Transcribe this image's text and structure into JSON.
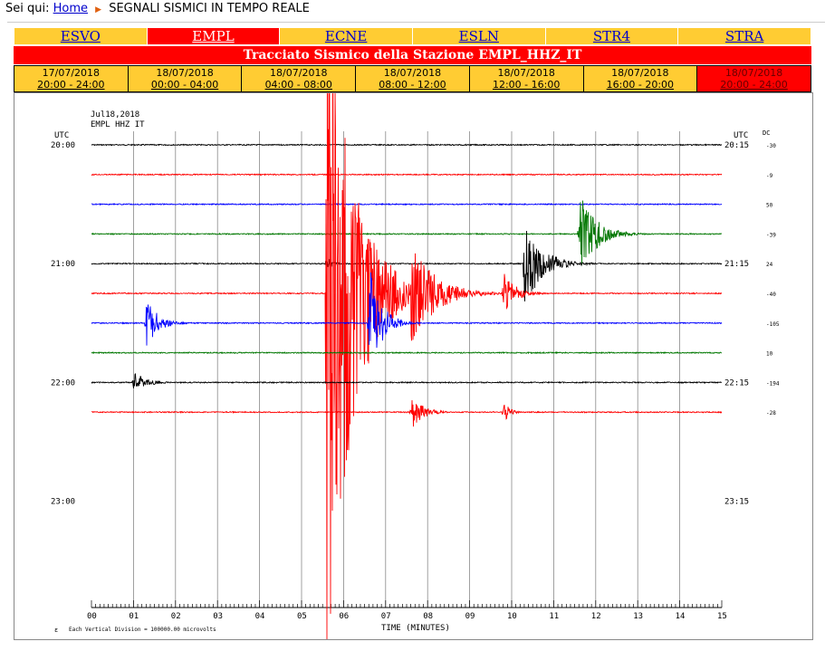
{
  "breadcrumb": {
    "prefix": "Sei qui:",
    "home": "Home",
    "current": "SEGNALI SISMICI IN TEMPO REALE"
  },
  "stations": [
    {
      "label": "ESVO",
      "active": false
    },
    {
      "label": "EMPL",
      "active": true
    },
    {
      "label": "ECNE",
      "active": false
    },
    {
      "label": "ESLN",
      "active": false
    },
    {
      "label": "STR4",
      "active": false
    },
    {
      "label": "STRA",
      "active": false
    }
  ],
  "title": "Tracciato Sismico della Stazione EMPL_HHZ_IT",
  "periods": [
    {
      "date": "17/07/2018",
      "time": "20:00 - 24:00",
      "active": false
    },
    {
      "date": "18/07/2018",
      "time": "00:00 - 04:00",
      "active": false
    },
    {
      "date": "18/07/2018",
      "time": "04:00 - 08:00",
      "active": false
    },
    {
      "date": "18/07/2018",
      "time": "08:00 - 12:00",
      "active": false
    },
    {
      "date": "18/07/2018",
      "time": "12:00 - 16:00",
      "active": false
    },
    {
      "date": "18/07/2018",
      "time": "16:00 - 20:00",
      "active": false
    },
    {
      "date": "18/07/2018",
      "time": "20:00 - 24:00",
      "active": true
    }
  ],
  "chart_data": {
    "type": "line",
    "header_date": "Jul18,2018",
    "header_station": "EMPL HHZ IT",
    "left_axis_title": "UTC",
    "right_axis_title": "UTC",
    "dc_title": "DC",
    "xlabel": "TIME (MINUTES)",
    "x_ticks": [
      "00",
      "01",
      "02",
      "03",
      "04",
      "05",
      "06",
      "07",
      "08",
      "09",
      "10",
      "11",
      "12",
      "13",
      "14",
      "15"
    ],
    "xlim": [
      0,
      15
    ],
    "left_hour_labels": [
      {
        "row": 0,
        "label": "20:00"
      },
      {
        "row": 4,
        "label": "21:00"
      },
      {
        "row": 8,
        "label": "22:00"
      },
      {
        "row": 12,
        "label": "23:00"
      }
    ],
    "right_hour_labels": [
      {
        "row": 0,
        "label": "20:15"
      },
      {
        "row": 4,
        "label": "21:15"
      },
      {
        "row": 8,
        "label": "22:15"
      },
      {
        "row": 12,
        "label": "23:15"
      }
    ],
    "trace_colors": [
      "#000000",
      "#ff0000",
      "#0000ff",
      "#007700"
    ],
    "traces": [
      {
        "row": 0,
        "dc": "-30",
        "events": []
      },
      {
        "row": 1,
        "dc": "-9",
        "events": []
      },
      {
        "row": 2,
        "dc": "50",
        "events": []
      },
      {
        "row": 3,
        "dc": "-39",
        "events": [
          {
            "t": 11.6,
            "amp": 52,
            "dur": 0.8
          }
        ]
      },
      {
        "row": 4,
        "dc": "24",
        "events": [
          {
            "t": 10.3,
            "amp": 50,
            "dur": 0.9
          },
          {
            "t": 5.6,
            "amp": 8,
            "dur": 0.3
          }
        ]
      },
      {
        "row": 5,
        "dc": "-40",
        "events": [
          {
            "t": 5.6,
            "amp": 420,
            "dur": 1.3
          },
          {
            "t": 7.6,
            "amp": 60,
            "dur": 1.2
          },
          {
            "t": 9.8,
            "amp": 25,
            "dur": 0.6
          }
        ]
      },
      {
        "row": 6,
        "dc": "-105",
        "events": [
          {
            "t": 1.3,
            "amp": 28,
            "dur": 0.6
          },
          {
            "t": 6.6,
            "amp": 70,
            "dur": 0.6
          }
        ]
      },
      {
        "row": 7,
        "dc": "10",
        "events": []
      },
      {
        "row": 8,
        "dc": "-194",
        "events": [
          {
            "t": 1.0,
            "amp": 14,
            "dur": 0.6
          }
        ]
      },
      {
        "row": 9,
        "dc": "-28",
        "events": [
          {
            "t": 7.6,
            "amp": 20,
            "dur": 0.6
          },
          {
            "t": 9.8,
            "amp": 14,
            "dur": 0.3
          }
        ]
      }
    ],
    "footnote": "Each Vertical Division = 100000.00 microvolts",
    "grid": true
  }
}
